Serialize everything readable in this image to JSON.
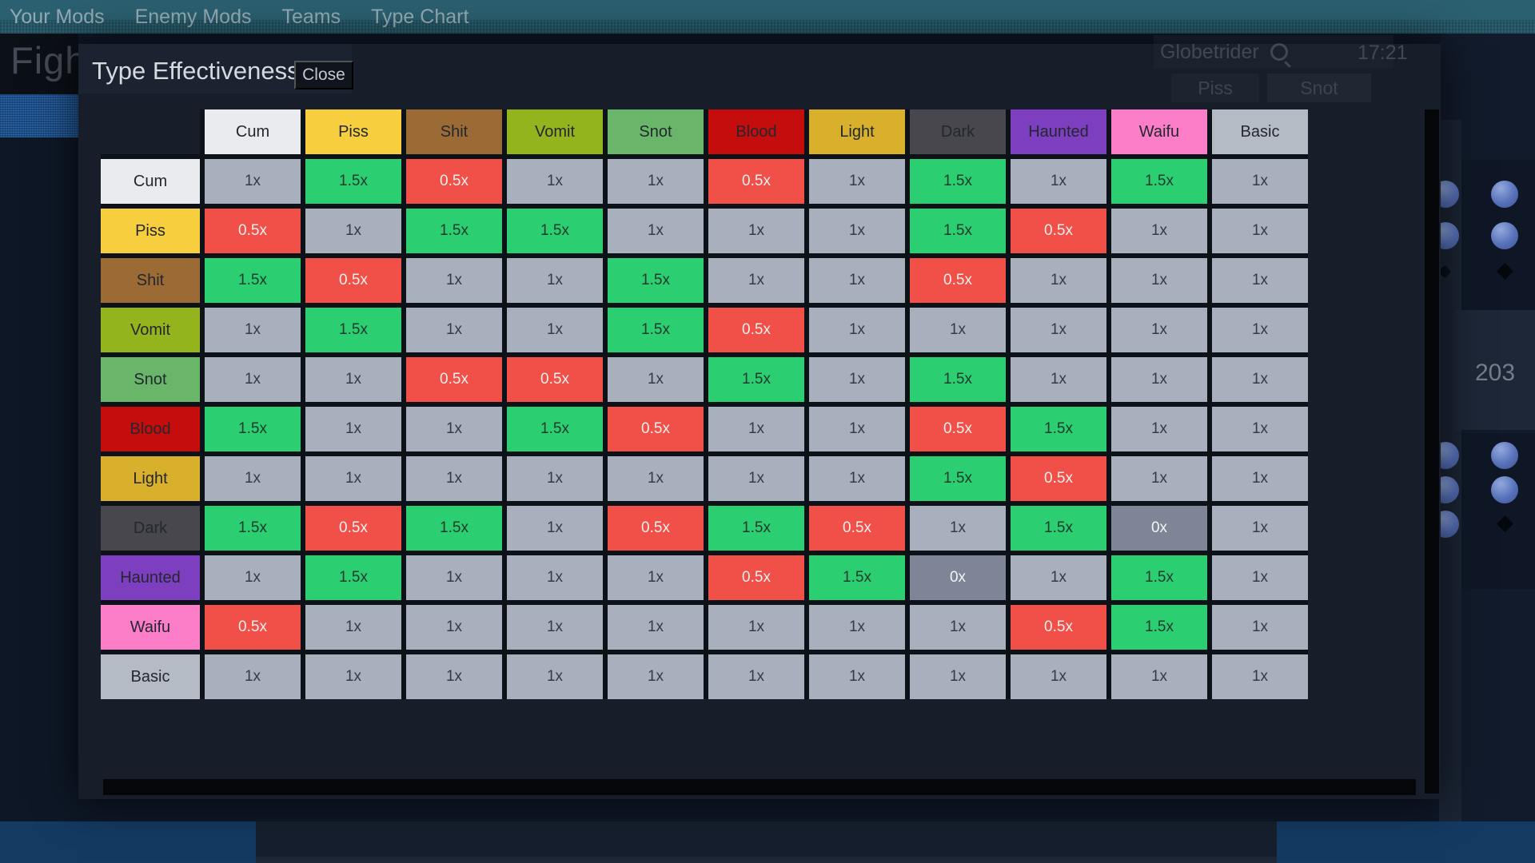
{
  "top_bar": {
    "tabs": [
      "Your Mods",
      "Enemy Mods",
      "Teams",
      "Type Chart"
    ],
    "active_tab": "Type Chart"
  },
  "background": {
    "clipped_screen_title": "Figh",
    "search_panel": {
      "label": "Globetrider",
      "time": "17:21"
    },
    "move_buttons": [
      "Piss",
      "Snot"
    ],
    "counter": "203"
  },
  "modal": {
    "title": "Type Effectiveness",
    "close_label": "Close",
    "types": [
      "Cum",
      "Piss",
      "Shit",
      "Vomit",
      "Snot",
      "Blood",
      "Light",
      "Dark",
      "Haunted",
      "Waifu",
      "Basic"
    ],
    "type_colors": {
      "Cum": "#e9ebee",
      "Piss": "#f7ce3e",
      "Shit": "#9c6a34",
      "Vomit": "#94b41d",
      "Snot": "#69b66a",
      "Blood": "#c50d0d",
      "Light": "#d8b02b",
      "Dark": "#47474d",
      "Haunted": "#7d3ec0",
      "Waifu": "#fc7dc8",
      "Basic": "#b5bbc5"
    },
    "value_colors": {
      "1x": {
        "bg": "#a9b0bd",
        "fg": "#343b47"
      },
      "1.5x": {
        "bg": "#2bce71",
        "fg": "#1f3a2d"
      },
      "0.5x": {
        "bg": "#f05048",
        "fg": "#f8efee"
      },
      "0x": {
        "bg": "#7d8596",
        "fg": "#f2f4f6"
      }
    },
    "matrix": [
      {
        "type": "Cum",
        "values": [
          "1x",
          "1.5x",
          "0.5x",
          "1x",
          "1x",
          "0.5x",
          "1x",
          "1.5x",
          "1x",
          "1.5x",
          "1x"
        ]
      },
      {
        "type": "Piss",
        "values": [
          "0.5x",
          "1x",
          "1.5x",
          "1.5x",
          "1x",
          "1x",
          "1x",
          "1.5x",
          "0.5x",
          "1x",
          "1x"
        ]
      },
      {
        "type": "Shit",
        "values": [
          "1.5x",
          "0.5x",
          "1x",
          "1x",
          "1.5x",
          "1x",
          "1x",
          "0.5x",
          "1x",
          "1x",
          "1x"
        ]
      },
      {
        "type": "Vomit",
        "values": [
          "1x",
          "1.5x",
          "1x",
          "1x",
          "1.5x",
          "0.5x",
          "1x",
          "1x",
          "1x",
          "1x",
          "1x"
        ]
      },
      {
        "type": "Snot",
        "values": [
          "1x",
          "1x",
          "0.5x",
          "0.5x",
          "1x",
          "1.5x",
          "1x",
          "1.5x",
          "1x",
          "1x",
          "1x"
        ]
      },
      {
        "type": "Blood",
        "values": [
          "1.5x",
          "1x",
          "1x",
          "1.5x",
          "0.5x",
          "1x",
          "1x",
          "0.5x",
          "1.5x",
          "1x",
          "1x"
        ]
      },
      {
        "type": "Light",
        "values": [
          "1x",
          "1x",
          "1x",
          "1x",
          "1x",
          "1x",
          "1x",
          "1.5x",
          "0.5x",
          "1x",
          "1x"
        ]
      },
      {
        "type": "Dark",
        "values": [
          "1.5x",
          "0.5x",
          "1.5x",
          "1x",
          "0.5x",
          "1.5x",
          "0.5x",
          "1x",
          "1.5x",
          "0x",
          "1x"
        ]
      },
      {
        "type": "Haunted",
        "values": [
          "1x",
          "1.5x",
          "1x",
          "1x",
          "1x",
          "0.5x",
          "1.5x",
          "0x",
          "1x",
          "1.5x",
          "1x"
        ]
      },
      {
        "type": "Waifu",
        "values": [
          "0.5x",
          "1x",
          "1x",
          "1x",
          "1x",
          "1x",
          "1x",
          "1x",
          "0.5x",
          "1.5x",
          "1x"
        ]
      },
      {
        "type": "Basic",
        "values": [
          "1x",
          "1x",
          "1x",
          "1x",
          "1x",
          "1x",
          "1x",
          "1x",
          "1x",
          "1x",
          "1x"
        ]
      }
    ]
  }
}
